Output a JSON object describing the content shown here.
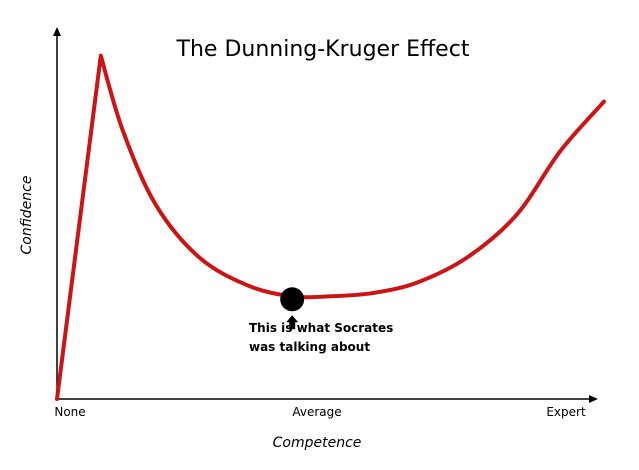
{
  "chart_data": {
    "type": "line",
    "title": "The Dunning-Kruger Effect",
    "xlabel": "Competence",
    "ylabel": "Confidence",
    "x_ticks": [
      "None",
      "Average",
      "Expert"
    ],
    "xlim": [
      0,
      100
    ],
    "ylim": [
      0,
      100
    ],
    "grid": false,
    "legend": "none",
    "series": [
      {
        "color": "#cc1414",
        "x": [
          0,
          8,
          12,
          18,
          26,
          35,
          43,
          50,
          58,
          66,
          75,
          84,
          92,
          100
        ],
        "y": [
          0,
          97,
          76,
          55,
          40,
          32,
          29,
          29,
          30,
          33,
          40,
          52,
          70,
          84
        ]
      }
    ],
    "marker": {
      "x": 43,
      "y": 29,
      "color": "#000000",
      "label_lines": [
        "This is what Socrates",
        "was talking about"
      ]
    }
  }
}
